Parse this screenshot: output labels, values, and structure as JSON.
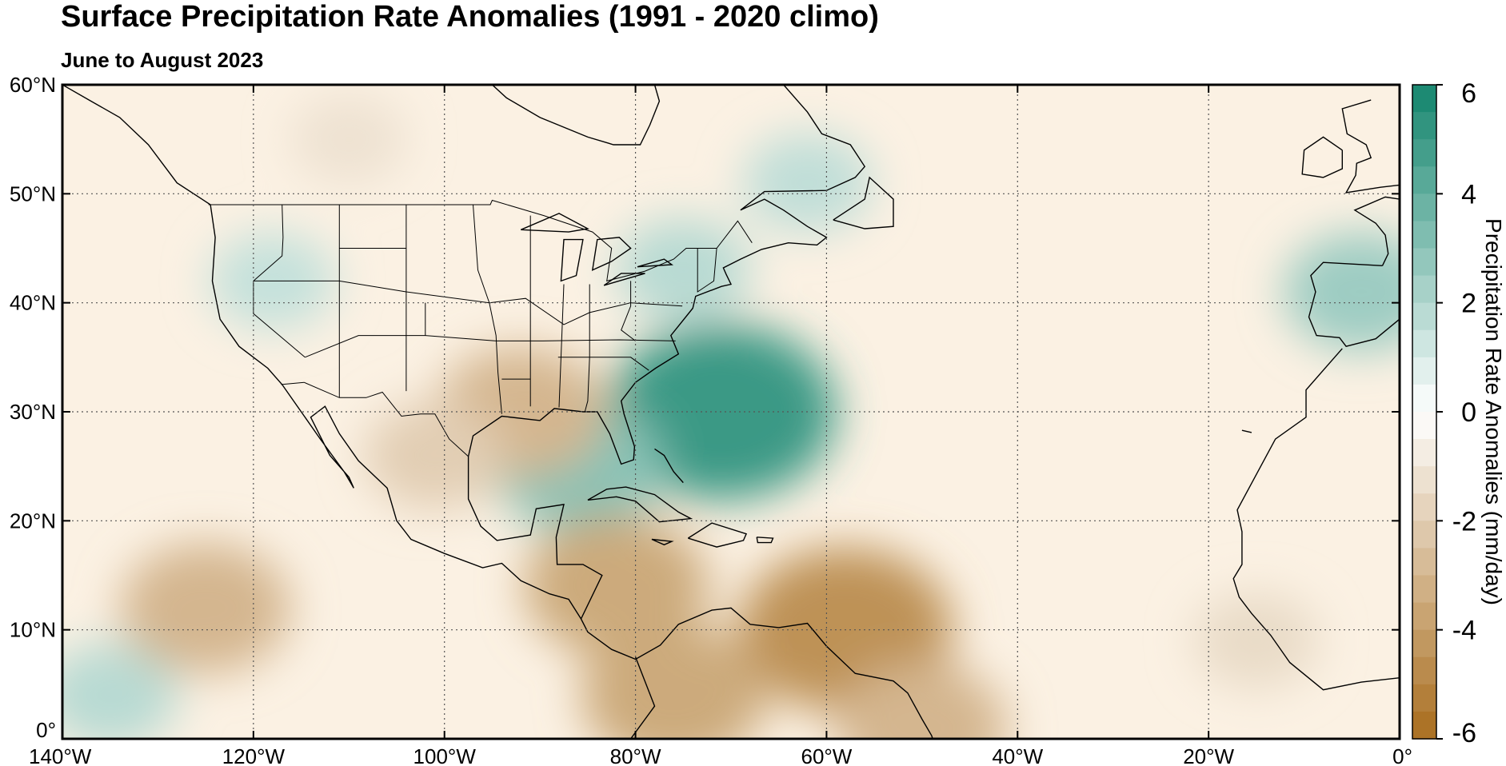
{
  "title": "Surface Precipitation Rate Anomalies (1991 - 2020 climo)",
  "subtitle": "June to August 2023",
  "map": {
    "lon_range": [
      -140,
      0
    ],
    "lat_range": [
      0,
      60
    ],
    "lon_ticks": [
      {
        "value": -140,
        "label": "140°W"
      },
      {
        "value": -120,
        "label": "120°W"
      },
      {
        "value": -100,
        "label": "100°W"
      },
      {
        "value": -80,
        "label": "80°W"
      },
      {
        "value": -60,
        "label": "60°W"
      },
      {
        "value": -40,
        "label": "40°W"
      },
      {
        "value": -20,
        "label": "20°W"
      },
      {
        "value": 0,
        "label": "0°"
      }
    ],
    "lat_ticks": [
      {
        "value": 0,
        "label": "0°"
      },
      {
        "value": 10,
        "label": "10°N"
      },
      {
        "value": 20,
        "label": "20°N"
      },
      {
        "value": 30,
        "label": "30°N"
      },
      {
        "value": 40,
        "label": "40°N"
      },
      {
        "value": 50,
        "label": "50°N"
      },
      {
        "value": 60,
        "label": "60°N"
      }
    ],
    "grid": "dotted",
    "anomalies": [
      {
        "name": "Western Atlantic off Southeast US",
        "lon": -71,
        "lat": 30,
        "value": 5.0
      },
      {
        "name": "Gulf of Mexico",
        "lon": -86,
        "lat": 25,
        "value": 3.0
      },
      {
        "name": "Northeast US",
        "lon": -75,
        "lat": 43,
        "value": 1.8
      },
      {
        "name": "Labrador Sea",
        "lon": -62,
        "lat": 51,
        "value": 1.6
      },
      {
        "name": "Iberia",
        "lon": -4,
        "lat": 41,
        "value": 2.5
      },
      {
        "name": "Eastern Pacific",
        "lon": -135,
        "lat": 4,
        "value": 1.8
      },
      {
        "name": "Western US",
        "lon": -118,
        "lat": 42,
        "value": 1.5
      },
      {
        "name": "Eastern Tropical Pacific",
        "lon": -125,
        "lat": 12,
        "value": -3.0
      },
      {
        "name": "Northern South America",
        "lon": -58,
        "lat": 10,
        "value": -4.5
      },
      {
        "name": "Caribbean",
        "lon": -82,
        "lat": 14,
        "value": -3.5
      },
      {
        "name": "Panama Colombia",
        "lon": -76,
        "lat": 4,
        "value": -3.5
      },
      {
        "name": "Amazon",
        "lon": -50,
        "lat": 1,
        "value": -3.0
      },
      {
        "name": "Louisiana Texas",
        "lon": -92,
        "lat": 30,
        "value": -3.0
      },
      {
        "name": "Mexico",
        "lon": -101,
        "lat": 26,
        "value": -2.0
      },
      {
        "name": "Canada",
        "lon": -110,
        "lat": 55,
        "value": -1.2
      },
      {
        "name": "West Africa",
        "lon": -15,
        "lat": 9,
        "value": -1.5
      }
    ]
  },
  "colorbar": {
    "label": "Precipitation Rate Anomalies (mm/day)",
    "min": -6,
    "max": 6,
    "levels": 24,
    "ticks": [
      {
        "value": 6,
        "label": "6"
      },
      {
        "value": 4,
        "label": "4"
      },
      {
        "value": 2,
        "label": "2"
      },
      {
        "value": 0,
        "label": "0"
      },
      {
        "value": -2,
        "label": "-2"
      },
      {
        "value": -4,
        "label": "-4"
      },
      {
        "value": -6,
        "label": "-6"
      }
    ],
    "color_low": "#a86d1e",
    "color_mid": "#ffffff",
    "color_high": "#13856d"
  }
}
